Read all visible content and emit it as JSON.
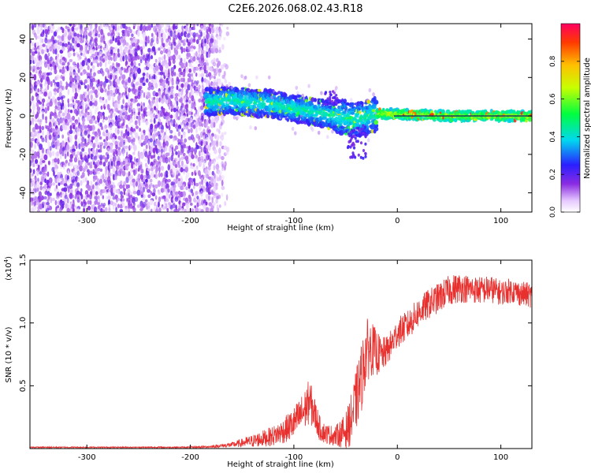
{
  "title": "C2E6.2026.068.02.43.R18",
  "chart_data": [
    {
      "type": "heatmap",
      "xlabel": "Height of straight line (km)",
      "ylabel": "Frequency (Hz)",
      "xlim": [
        -355,
        130
      ],
      "ylim": [
        -50,
        48
      ],
      "x_ticks": [
        -300,
        -200,
        -100,
        0,
        100
      ],
      "y_ticks": [
        -40,
        -20,
        0,
        20,
        40
      ],
      "colorbar": {
        "label": "Normalized spectral amplitude",
        "range": [
          0,
          1
        ],
        "ticks": [
          0.0,
          0.2,
          0.4,
          0.6,
          0.8
        ],
        "tick_labels": [
          "0.0",
          "0.2",
          "0.4",
          "0.6",
          "0.8"
        ]
      },
      "noise_region": {
        "x_range": [
          -355,
          -178
        ],
        "description": "broadband noise"
      },
      "ridge": [
        {
          "x": -185,
          "f": 7
        },
        {
          "x": -160,
          "f": 8
        },
        {
          "x": -140,
          "f": 7
        },
        {
          "x": -120,
          "f": 6
        },
        {
          "x": -100,
          "f": 4
        },
        {
          "x": -80,
          "f": 2
        },
        {
          "x": -60,
          "f": 0
        },
        {
          "x": -40,
          "f": -2
        },
        {
          "x": -30,
          "f": -1
        },
        {
          "x": -20,
          "f": 1
        },
        {
          "x": 0,
          "f": 1
        },
        {
          "x": 50,
          "f": 0
        },
        {
          "x": 130,
          "f": 0
        }
      ]
    },
    {
      "type": "line",
      "xlabel": "Height of straight line (km)",
      "ylabel": "SNR (10 * v/v)",
      "y_multiplier": "(x10",
      "y_exponent": "4",
      "y_multiplier_close": ")",
      "xlim": [
        -355,
        130
      ],
      "ylim": [
        0,
        1.5
      ],
      "x_ticks": [
        -300,
        -200,
        -100,
        0,
        100
      ],
      "y_ticks": [
        0.5,
        1.0,
        1.5
      ],
      "y_tick_labels": [
        "0.5",
        "1.0",
        "1.5"
      ],
      "color": "#e8312f",
      "series": [
        {
          "name": "SNR",
          "x": [
            -355,
            -300,
            -250,
            -200,
            -180,
            -160,
            -140,
            -120,
            -110,
            -100,
            -90,
            -85,
            -80,
            -75,
            -70,
            -60,
            -50,
            -45,
            -40,
            -35,
            -30,
            -25,
            -20,
            -15,
            -10,
            -5,
            0,
            10,
            20,
            30,
            40,
            50,
            60,
            70,
            80,
            90,
            100,
            110,
            120,
            130
          ],
          "values": [
            0.01,
            0.01,
            0.01,
            0.01,
            0.015,
            0.03,
            0.06,
            0.1,
            0.14,
            0.2,
            0.3,
            0.38,
            0.28,
            0.16,
            0.12,
            0.1,
            0.14,
            0.22,
            0.38,
            0.55,
            0.78,
            0.8,
            0.76,
            0.74,
            0.78,
            0.84,
            0.92,
            0.98,
            1.08,
            1.15,
            1.2,
            1.26,
            1.28,
            1.27,
            1.26,
            1.27,
            1.24,
            1.26,
            1.23,
            1.22
          ],
          "amp": [
            0.005,
            0.005,
            0.005,
            0.006,
            0.01,
            0.02,
            0.05,
            0.08,
            0.1,
            0.13,
            0.16,
            0.18,
            0.14,
            0.1,
            0.08,
            0.08,
            0.14,
            0.2,
            0.24,
            0.28,
            0.26,
            0.22,
            0.18,
            0.14,
            0.12,
            0.12,
            0.12,
            0.12,
            0.12,
            0.12,
            0.12,
            0.12,
            0.12,
            0.11,
            0.11,
            0.11,
            0.1,
            0.1,
            0.1,
            0.1
          ]
        }
      ]
    }
  ]
}
